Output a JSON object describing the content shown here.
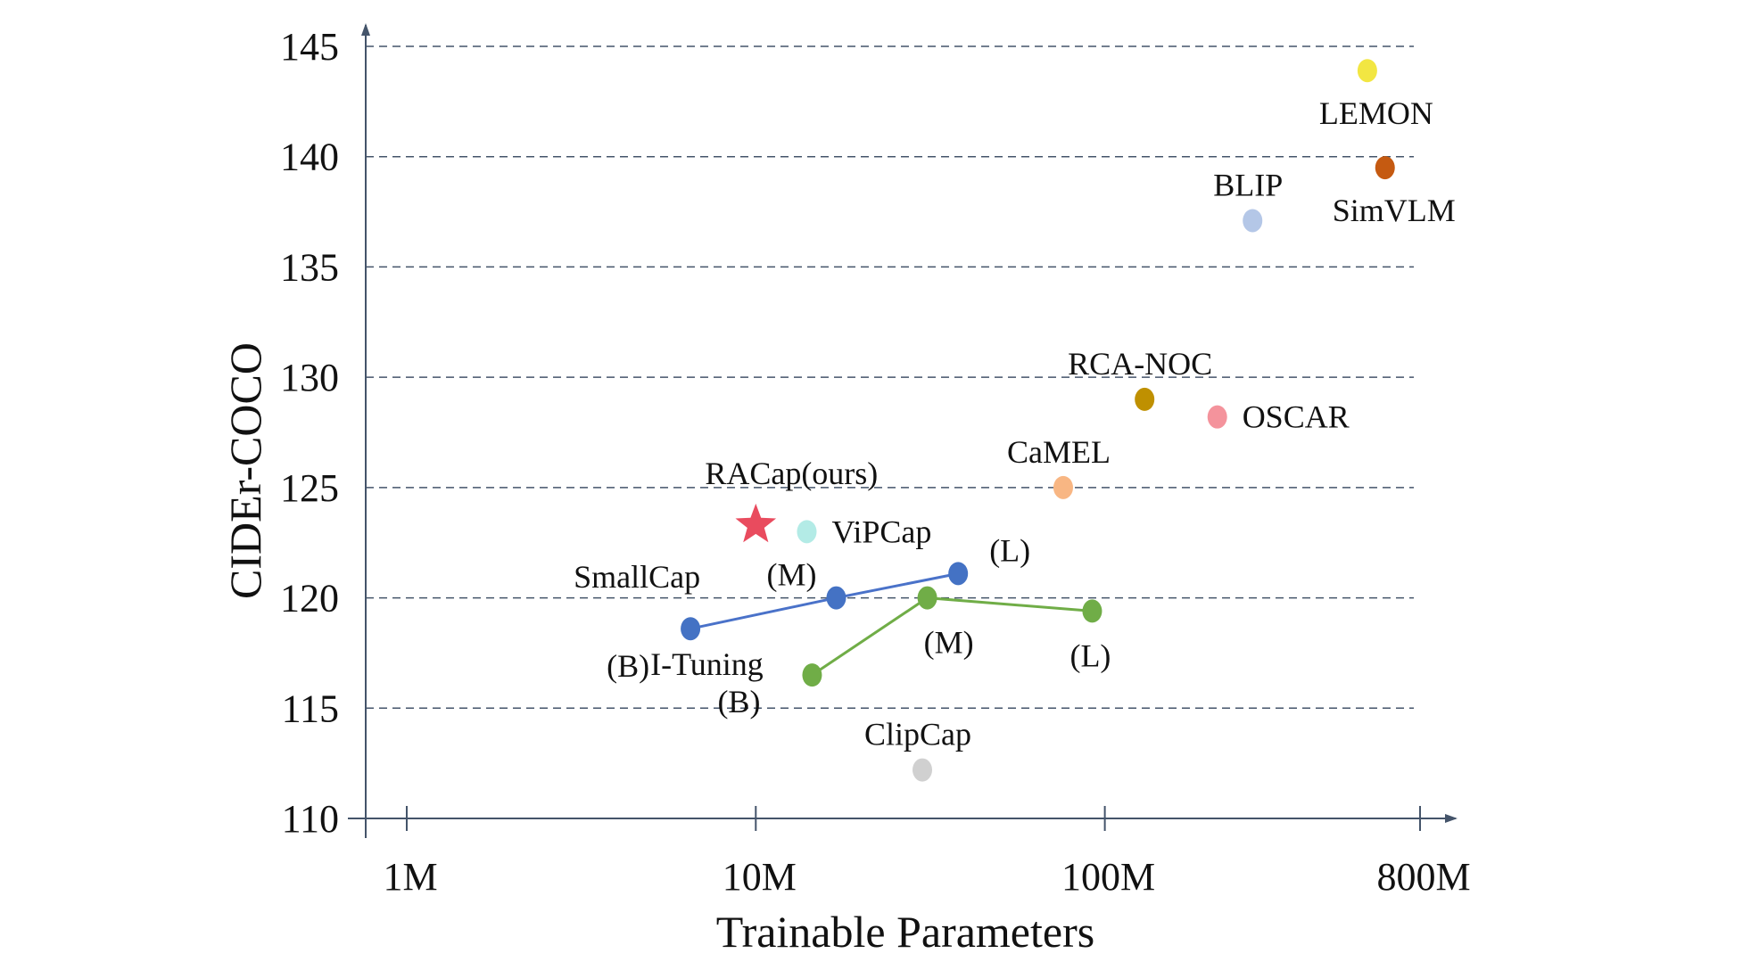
{
  "chart_data": {
    "type": "scatter",
    "title": "",
    "xlabel": "Trainable Parameters",
    "ylabel": "CIDEr-COCO",
    "x_scale": "log",
    "xlim": [
      1,
      800
    ],
    "ylim": [
      110,
      145
    ],
    "x_ticks": [
      {
        "value": 1,
        "label": "1M"
      },
      {
        "value": 10,
        "label": "10M"
      },
      {
        "value": 100,
        "label": "100M"
      },
      {
        "value": 800,
        "label": "800M"
      }
    ],
    "y_ticks": [
      {
        "value": 110,
        "label": "110"
      },
      {
        "value": 115,
        "label": "115"
      },
      {
        "value": 120,
        "label": "120"
      },
      {
        "value": 125,
        "label": "125"
      },
      {
        "value": 130,
        "label": "130"
      },
      {
        "value": 135,
        "label": "135"
      },
      {
        "value": 140,
        "label": "140"
      },
      {
        "value": 145,
        "label": "145"
      }
    ],
    "grid": "horizontal dashed",
    "points": [
      {
        "name": "LEMON",
        "label": "LEMON",
        "x": 565,
        "y": 143.9,
        "color": "#f2e642",
        "label_pos": "below"
      },
      {
        "name": "SimVLM",
        "label": "SimVLM",
        "x": 635,
        "y": 139.5,
        "color": "#c55a11",
        "label_pos": "below"
      },
      {
        "name": "BLIP",
        "label": "BLIP",
        "x": 265,
        "y": 137.1,
        "color": "#b4c7e7",
        "label_pos": "above"
      },
      {
        "name": "RCA-NOC",
        "label": "RCA-NOC",
        "x": 130,
        "y": 129.0,
        "color": "#bf9000",
        "label_pos": "above"
      },
      {
        "name": "OSCAR",
        "label": "OSCAR",
        "x": 210,
        "y": 128.2,
        "color": "#f4939c",
        "label_pos": "right"
      },
      {
        "name": "CaMEL",
        "label": "CaMEL",
        "x": 76,
        "y": 125.0,
        "color": "#f8b683",
        "label_pos": "above"
      },
      {
        "name": "ViPCap",
        "label": "ViPCap",
        "x": 14,
        "y": 123.0,
        "color": "#b3ebe6",
        "label_pos": "right"
      },
      {
        "name": "ClipCap",
        "label": "ClipCap",
        "x": 30,
        "y": 112.2,
        "color": "#d0d0d0",
        "label_pos": "above"
      },
      {
        "name": "RACap",
        "label": "RACap(ours)",
        "x": 10,
        "y": 123.3,
        "color": "#e94b5e",
        "marker": "star",
        "label_pos": "above"
      }
    ],
    "series": [
      {
        "name": "SmallCap",
        "label": "SmallCap",
        "color": "#4472c4",
        "line_color": "#4a72c9",
        "points": [
          {
            "size": "(B)",
            "x": 6.5,
            "y": 118.6
          },
          {
            "size": "(M)",
            "x": 17,
            "y": 120.0
          },
          {
            "size": "(L)",
            "x": 38,
            "y": 121.1
          }
        ]
      },
      {
        "name": "I-Tuning",
        "label": "I-Tuning",
        "color": "#70ad47",
        "line_color": "#70ad47",
        "points": [
          {
            "size": "(B)",
            "x": 14.5,
            "y": 116.5
          },
          {
            "size": "(M)",
            "x": 31,
            "y": 120.0
          },
          {
            "size": "(L)",
            "x": 92,
            "y": 119.4
          }
        ]
      }
    ]
  }
}
